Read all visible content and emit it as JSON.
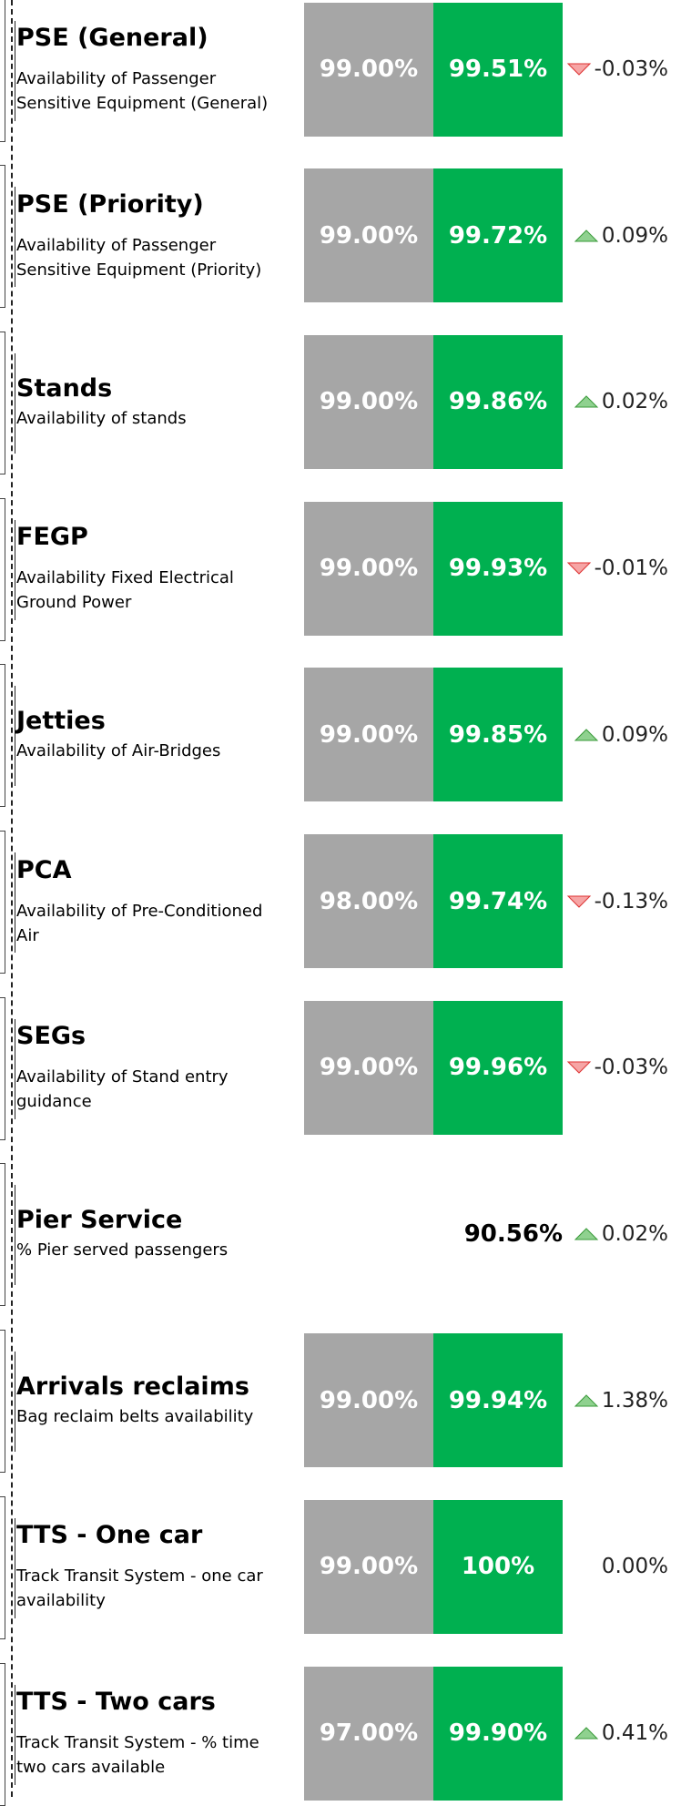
{
  "items": [
    {
      "title": "PSE (General)",
      "description": "Availability of Passenger Sensitive Equipment (General)",
      "target": "99.00%",
      "actual": "99.51%",
      "change": "-0.03%",
      "trend": "down"
    },
    {
      "title": "PSE (Priority)",
      "description": "Availability of Passenger Sensitive Equipment (Priority)",
      "target": "99.00%",
      "actual": "99.72%",
      "change": "0.09%",
      "trend": "up"
    },
    {
      "title": "Stands",
      "description": "Availability of stands",
      "target": "99.00%",
      "actual": "99.86%",
      "change": "0.02%",
      "trend": "up"
    },
    {
      "title": "FEGP",
      "description": "Availability Fixed Electrical Ground Power",
      "target": "99.00%",
      "actual": "99.93%",
      "change": "-0.01%",
      "trend": "down"
    },
    {
      "title": "Jetties",
      "description": "Availability of Air-Bridges",
      "target": "99.00%",
      "actual": "99.85%",
      "change": "0.09%",
      "trend": "up"
    },
    {
      "title": "PCA",
      "description": "Availability of Pre-Conditioned Air",
      "target": "98.00%",
      "actual": "99.74%",
      "change": "-0.13%",
      "trend": "down"
    },
    {
      "title": "SEGs",
      "description": "Availability of Stand entry guidance",
      "target": "99.00%",
      "actual": "99.96%",
      "change": "-0.03%",
      "trend": "down"
    },
    {
      "title": "Pier Service",
      "description": "% Pier served passengers",
      "value": "90.56%",
      "change": "0.02%",
      "trend": "up"
    },
    {
      "title": "Arrivals reclaims",
      "description": "Bag reclaim belts availability",
      "target": "99.00%",
      "actual": "99.94%",
      "change": "1.38%",
      "trend": "up"
    },
    {
      "title": "TTS - One car",
      "description": "Track Transit System - one car availability",
      "target": "99.00%",
      "actual": "100%",
      "change": "0.00%"
    },
    {
      "title": "TTS - Two cars",
      "description": "Track Transit System - % time two cars available",
      "target": "97.00%",
      "actual": "99.90%",
      "change": "0.41%",
      "trend": "up"
    }
  ]
}
